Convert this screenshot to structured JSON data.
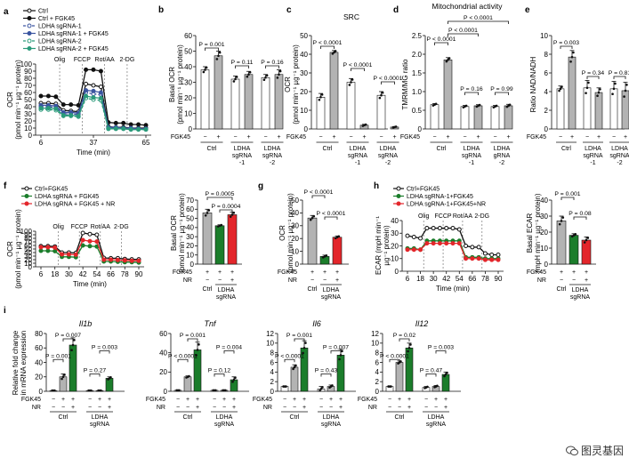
{
  "panel_labels": [
    "a",
    "b",
    "c",
    "d",
    "e",
    "f",
    "g",
    "h",
    "i"
  ],
  "colors": {
    "black": "#111111",
    "grey": "#b3b3b3",
    "green": "#1b7d2b",
    "red": "#e3262b",
    "teal": "#2a9a7a",
    "blue": "#3a55a0"
  },
  "common": {
    "fgk45": "FGK45",
    "nr": "NR",
    "minus": "−",
    "plus": "+",
    "ctrl": "Ctrl",
    "ldha": "LDHA",
    "sgrna": "sgRNA",
    "sgrna1": "sgRNA",
    "m1": "-1",
    "m2": "-2"
  },
  "chart_data": [
    {
      "id": "a",
      "type": "line",
      "xlabel": "Time (min)",
      "ylabel_1": "OCR",
      "ylabel_2": "(pmol min⁻¹ µg⁻¹ protein)",
      "x_ticks": [
        "6",
        "37",
        "65"
      ],
      "y_ticks": [
        "0",
        "10",
        "20",
        "30",
        "40",
        "50",
        "60",
        "70",
        "80",
        "90",
        "100"
      ],
      "ylim": [
        0,
        100
      ],
      "injections": [
        "Olig",
        "FCCP",
        "Rot/AA",
        "2-DG"
      ],
      "legend": [
        "Ctrl",
        "Ctrl + FGK45",
        "LDHA sgRNA-1",
        "LDHA sgRNA-1 + FGK45",
        "LDHA sgRNA-2",
        "LDHA sgRNA-2 + FGK45"
      ],
      "series": [
        {
          "name": "Ctrl",
          "values": [
            45,
            45,
            44,
            35,
            34,
            33,
            72,
            70,
            68,
            12,
            11,
            11,
            10,
            10,
            10
          ]
        },
        {
          "name": "Ctrl + FGK45",
          "values": [
            55,
            55,
            54,
            43,
            43,
            42,
            92,
            92,
            90,
            18,
            17,
            17,
            15,
            15,
            14
          ]
        },
        {
          "name": "LDHA sgRNA-1",
          "values": [
            40,
            40,
            39,
            30,
            30,
            29,
            60,
            58,
            57,
            10,
            10,
            10,
            9,
            9,
            9
          ]
        },
        {
          "name": "LDHA sgRNA-1 + FGK45",
          "values": [
            42,
            42,
            41,
            32,
            32,
            31,
            63,
            62,
            60,
            11,
            11,
            10,
            10,
            9,
            9
          ]
        },
        {
          "name": "LDHA sgRNA-2",
          "values": [
            36,
            36,
            35,
            27,
            27,
            26,
            52,
            50,
            49,
            9,
            9,
            9,
            8,
            8,
            8
          ]
        },
        {
          "name": "LDHA sgRNA-2 + FGK45",
          "values": [
            38,
            38,
            37,
            28,
            28,
            27,
            55,
            53,
            52,
            9,
            9,
            9,
            8,
            8,
            8
          ]
        }
      ]
    },
    {
      "id": "b",
      "type": "bar",
      "ylabel_1": "Basal OCR",
      "ylabel_2": "(pmol min⁻¹ µg⁻¹ protein)",
      "ylim": [
        0,
        60
      ],
      "y_ticks": [
        "0",
        "10",
        "20",
        "30",
        "40",
        "50",
        "60"
      ],
      "values": [
        38,
        47,
        32,
        35,
        33,
        35
      ],
      "errors": [
        2,
        3,
        2,
        2,
        2,
        3
      ],
      "groups": [
        "Ctrl",
        "LDHA sgRNA -1",
        "LDHA sgRNA -2"
      ],
      "fgk": [
        "−",
        "+",
        "−",
        "+",
        "−",
        "+"
      ],
      "pvals": [
        "P = 0.001",
        "P = 0.11",
        "P = 0.16"
      ]
    },
    {
      "id": "c",
      "type": "bar",
      "title": "SRC",
      "ylabel_1": "OCR",
      "ylabel_2": "(pmol min⁻¹ µg⁻¹ protein)",
      "ylim": [
        0,
        50
      ],
      "y_ticks": [
        "0",
        "10",
        "20",
        "30",
        "40",
        "50"
      ],
      "values": [
        17,
        41,
        25,
        2,
        18,
        1
      ],
      "errors": [
        2,
        1,
        2,
        0.5,
        2,
        0.3
      ],
      "groups": [
        "Ctrl",
        "LDHA sgRNA -1",
        "LDHA sgRNA -2"
      ],
      "fgk": [
        "−",
        "+",
        "−",
        "+",
        "−",
        "+"
      ],
      "pvals": [
        "P < 0.0001",
        "P < 0.0001",
        "P < 0.0001"
      ]
    },
    {
      "id": "d",
      "type": "bar",
      "title": "Mitochondrial activity",
      "ylabel_1": "TMRM/MG ratio",
      "ylim": [
        0,
        2.5
      ],
      "y_ticks": [
        "0",
        "0.5",
        "1.0",
        "1.5",
        "2.0",
        "2.5"
      ],
      "values": [
        0.65,
        1.85,
        0.6,
        0.62,
        0.6,
        0.62
      ],
      "errors": [
        0.03,
        0.06,
        0.03,
        0.03,
        0.03,
        0.04
      ],
      "groups": [
        "Ctrl",
        "LDHA sgRNA -1",
        "LDHA gRNA -2"
      ],
      "fgk": [
        "−",
        "+",
        "−",
        "+",
        "−",
        "+"
      ],
      "pvals": [
        "P < 0.0001",
        "P < 0.0001",
        "P < 0.0001",
        "P = 0.16",
        "P = 0.99"
      ]
    },
    {
      "id": "e",
      "type": "bar",
      "ylabel_1": "Ratio NAD/NADH",
      "ylim": [
        0,
        10
      ],
      "y_ticks": [
        "0",
        "2",
        "4",
        "6",
        "8",
        "10"
      ],
      "values": [
        4.3,
        7.7,
        4.4,
        3.9,
        4.3,
        4.1
      ],
      "errors": [
        0.3,
        0.7,
        0.8,
        0.5,
        0.8,
        0.9
      ],
      "groups": [
        "Ctrl",
        "LDHA sgRNA -1",
        "LDHA sgRNA -2"
      ],
      "fgk": [
        "−",
        "+",
        "−",
        "+",
        "−",
        "+"
      ],
      "pvals": [
        "P = 0.003",
        "P = 0.34",
        "P = 0.81"
      ]
    },
    {
      "id": "f_line",
      "type": "line",
      "xlabel": "Time (min)",
      "ylabel_1": "OCR",
      "ylabel_2": "(pmol min⁻¹ µg⁻¹ protein)",
      "x_ticks": [
        "6",
        "18",
        "30",
        "42",
        "54",
        "66",
        "78",
        "90"
      ],
      "y_ticks": [
        "0",
        "10",
        "20",
        "30",
        "40",
        "50",
        "60",
        "70",
        "80",
        "90",
        "100"
      ],
      "ylim": [
        0,
        100
      ],
      "injections": [
        "Olig",
        "FCCP",
        "Rot/AA",
        "2-DG"
      ],
      "legend": [
        "Ctrl+FGK45",
        "LDHA sgRNA + FGK45",
        "LDHA sgRNA + FGK45 + NR"
      ],
      "series": [
        {
          "name": "Ctrl+FGK45",
          "values": [
            58,
            58,
            57,
            40,
            40,
            39,
            95,
            92,
            90,
            25,
            24,
            24,
            22,
            21,
            21
          ]
        },
        {
          "name": "LDHA sgRNA + FGK45",
          "values": [
            45,
            45,
            44,
            28,
            28,
            27,
            60,
            58,
            57,
            15,
            15,
            14,
            13,
            13,
            12
          ]
        },
        {
          "name": "LDHA sgRNA + FGK45 + NR",
          "values": [
            55,
            55,
            54,
            35,
            35,
            34,
            75,
            72,
            71,
            20,
            20,
            19,
            18,
            17,
            17
          ]
        }
      ]
    },
    {
      "id": "f_bar",
      "type": "bar",
      "ylabel_1": "Basal OCR",
      "ylabel_2": "(pmol min⁻¹ µg⁻¹ protein)",
      "ylim": [
        0,
        70
      ],
      "y_ticks": [
        "0",
        "10",
        "20",
        "30",
        "40",
        "50",
        "60",
        "70"
      ],
      "values": [
        56,
        42,
        54
      ],
      "errors": [
        4,
        1,
        3
      ],
      "fgk": [
        "+",
        "+",
        "+"
      ],
      "nr": [
        "−",
        "−",
        "+"
      ],
      "groups": [
        "Ctrl",
        "LDHA sgRNA"
      ],
      "pvals": [
        "P = 0.0005",
        "P = 0.0004"
      ]
    },
    {
      "id": "g",
      "type": "bar",
      "ylabel_1": "OCR",
      "ylabel_2": "(pmol min⁻¹ µg⁻¹ protein)",
      "ylim": [
        0,
        50
      ],
      "y_ticks": [
        "0",
        "10",
        "20",
        "30",
        "40",
        "50"
      ],
      "values": [
        36,
        6,
        21
      ],
      "errors": [
        2,
        1,
        1
      ],
      "fgk": [
        "+",
        "+",
        "+"
      ],
      "nr": [
        "−",
        "−",
        "+"
      ],
      "groups": [
        "Ctrl",
        "LDHA sgRNA"
      ],
      "pvals": [
        "P < 0.0001",
        "P < 0.0001"
      ]
    },
    {
      "id": "h_line",
      "type": "line",
      "xlabel": "Time (min)",
      "ylabel_1": "ECAR (mpH min⁻¹",
      "ylabel_2": "µg⁻¹ protein)",
      "x_ticks": [
        "6",
        "18",
        "30",
        "42",
        "54",
        "66",
        "78",
        "90"
      ],
      "y_ticks": [
        "0",
        "10",
        "20",
        "30",
        "40"
      ],
      "ylim": [
        0,
        40
      ],
      "injections": [
        "Olig",
        "FCCP",
        "Rot/AA",
        "2-DG"
      ],
      "legend": [
        "Ctrl+FGK45",
        "LDHA sgRNA-1+FGK45",
        "LDHA sgRNA-1+FGK45+NR"
      ],
      "series": [
        {
          "name": "Ctrl+FGK45",
          "values": [
            28,
            27,
            26,
            34,
            34,
            34,
            34,
            34,
            33,
            20,
            19,
            19,
            14,
            13,
            13
          ]
        },
        {
          "name": "LDHA sgRNA-1+FGK45",
          "values": [
            18,
            18,
            17,
            24,
            24,
            24,
            24,
            24,
            24,
            11,
            11,
            11,
            10,
            10,
            10
          ]
        },
        {
          "name": "LDHA sgRNA-1+FGK45+NR",
          "values": [
            17,
            17,
            17,
            22,
            22,
            22,
            22,
            22,
            22,
            10,
            10,
            10,
            9,
            9,
            9
          ]
        }
      ]
    },
    {
      "id": "h_bar",
      "type": "bar",
      "ylabel_1": "Basal ECAR",
      "ylabel_2": "(mpH min⁻¹ µg⁻¹ protein)",
      "ylim": [
        0,
        40
      ],
      "y_ticks": [
        "0",
        "10",
        "20",
        "30",
        "40"
      ],
      "values": [
        27,
        18,
        15
      ],
      "errors": [
        3,
        1,
        2
      ],
      "fgk": [
        "+",
        "+",
        "+"
      ],
      "nr": [
        "−",
        "−",
        "+"
      ],
      "groups": [
        "Ctrl",
        "LDHA sgRNA"
      ],
      "pvals": [
        "P = 0.001",
        "P = 0.08"
      ]
    },
    {
      "id": "i1",
      "type": "bar",
      "title": "Il1b",
      "ylabel_1": "Relative fold change",
      "ylabel_2": "in mRNA expression",
      "ylim": [
        0,
        80
      ],
      "y_ticks": [
        "0",
        "20",
        "40",
        "60",
        "80"
      ],
      "values": [
        1,
        20,
        64,
        1,
        1,
        18
      ],
      "errors": [
        0,
        4,
        10,
        0,
        0,
        2
      ],
      "fgk": [
        "−",
        "+",
        "+",
        "−",
        "+",
        "+"
      ],
      "nr": [
        "−",
        "−",
        "+",
        "−",
        "−",
        "+"
      ],
      "groups": [
        "Ctrl",
        "LDHA sgRNA"
      ],
      "pvals": [
        "P = 0.001",
        "P = 0.007",
        "P = 0.27",
        "P = 0.003"
      ]
    },
    {
      "id": "i2",
      "type": "bar",
      "title": "Tnf",
      "ylim": [
        0,
        60
      ],
      "y_ticks": [
        "0",
        "20",
        "40",
        "60"
      ],
      "values": [
        1,
        15,
        43,
        1,
        1,
        12
      ],
      "errors": [
        0,
        1,
        8,
        0,
        0,
        3
      ],
      "fgk": [
        "−",
        "+",
        "+",
        "−",
        "+",
        "+"
      ],
      "nr": [
        "−",
        "−",
        "+",
        "−",
        "−",
        "+"
      ],
      "groups": [
        "Ctrl",
        "LDHA sgRNA"
      ],
      "pvals": [
        "P < 0.0001",
        "P = 0.001",
        "P = 0.12",
        "P = 0.004"
      ]
    },
    {
      "id": "i3",
      "type": "bar",
      "title": "Il6",
      "ylim": [
        0,
        12
      ],
      "y_ticks": [
        "0",
        "2",
        "4",
        "6",
        "8",
        "10",
        "12"
      ],
      "values": [
        1,
        5,
        9,
        0.5,
        1,
        7.5
      ],
      "errors": [
        0,
        0.5,
        1.5,
        0.5,
        0.3,
        1.2
      ],
      "fgk": [
        "−",
        "+",
        "+",
        "−",
        "+",
        "+"
      ],
      "nr": [
        "−",
        "−",
        "+",
        "−",
        "−",
        "+"
      ],
      "groups": [
        "Ctrl",
        "LDHA sgRNA"
      ],
      "pvals": [
        "P < 0.0001",
        "P = 0.001",
        "P = 0.43",
        "P = 0.007"
      ]
    },
    {
      "id": "i4",
      "type": "bar",
      "title": "Il12",
      "ylim": [
        0,
        12
      ],
      "y_ticks": [
        "0",
        "2",
        "4",
        "6",
        "8",
        "10",
        "12"
      ],
      "values": [
        1,
        6,
        9,
        0.8,
        1,
        3.5
      ],
      "errors": [
        0,
        0.3,
        1,
        0.2,
        0.2,
        0.5
      ],
      "fgk": [
        "−",
        "+",
        "+",
        "−",
        "+",
        "+"
      ],
      "nr": [
        "−",
        "−",
        "+",
        "−",
        "−",
        "+"
      ],
      "groups": [
        "Ctrl",
        "LDHA sgRNA"
      ],
      "pvals": [
        "P < 0.0001",
        "P = 0.02",
        "P = 0.47",
        "P = 0.003"
      ]
    }
  ],
  "watermark": "图灵基因"
}
